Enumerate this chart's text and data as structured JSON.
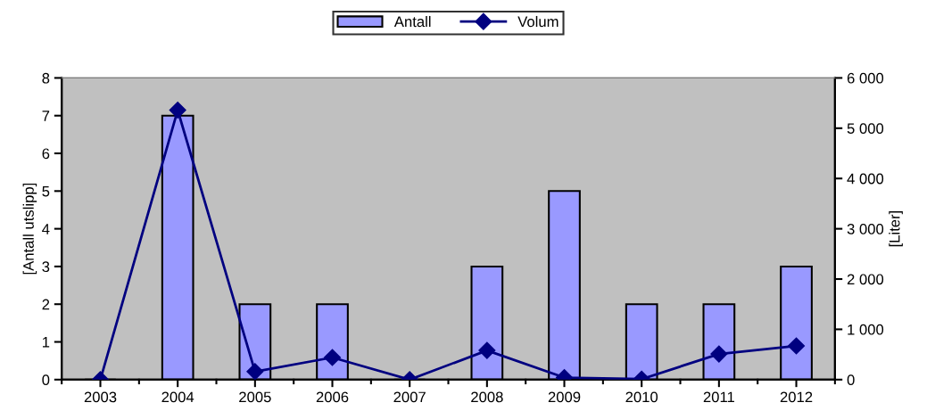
{
  "chart_data": {
    "type": "bar",
    "categories": [
      "2003",
      "2004",
      "2005",
      "2006",
      "2007",
      "2008",
      "2009",
      "2010",
      "2011",
      "2012"
    ],
    "series": [
      {
        "name": "Antall",
        "color": "#9999ff",
        "values": [
          0,
          7,
          2,
          2,
          0,
          3,
          5,
          2,
          2,
          3
        ]
      },
      {
        "name": "Volum",
        "type": "line",
        "axis": "y2",
        "color": "#000080",
        "marker": "diamond",
        "values": [
          0,
          5360,
          160,
          440,
          0,
          580,
          40,
          10,
          510,
          670
        ]
      }
    ],
    "ylabel": "[Antall utslipp]",
    "y2label": "[Liter]",
    "ylim": [
      0,
      8
    ],
    "yticks": [
      0,
      1,
      2,
      3,
      4,
      5,
      6,
      7,
      8
    ],
    "y2lim": [
      0,
      6000
    ],
    "y2ticks": [
      0,
      {
        "value": 1000,
        "label": "1 000"
      },
      {
        "value": 2000,
        "label": "2 000"
      },
      {
        "value": 3000,
        "label": "3 000"
      },
      {
        "value": 4000,
        "label": "4 000"
      },
      {
        "value": 5000,
        "label": "5 000"
      },
      {
        "value": 6000,
        "label": "6 000"
      }
    ],
    "grid": false,
    "legend": "top"
  }
}
